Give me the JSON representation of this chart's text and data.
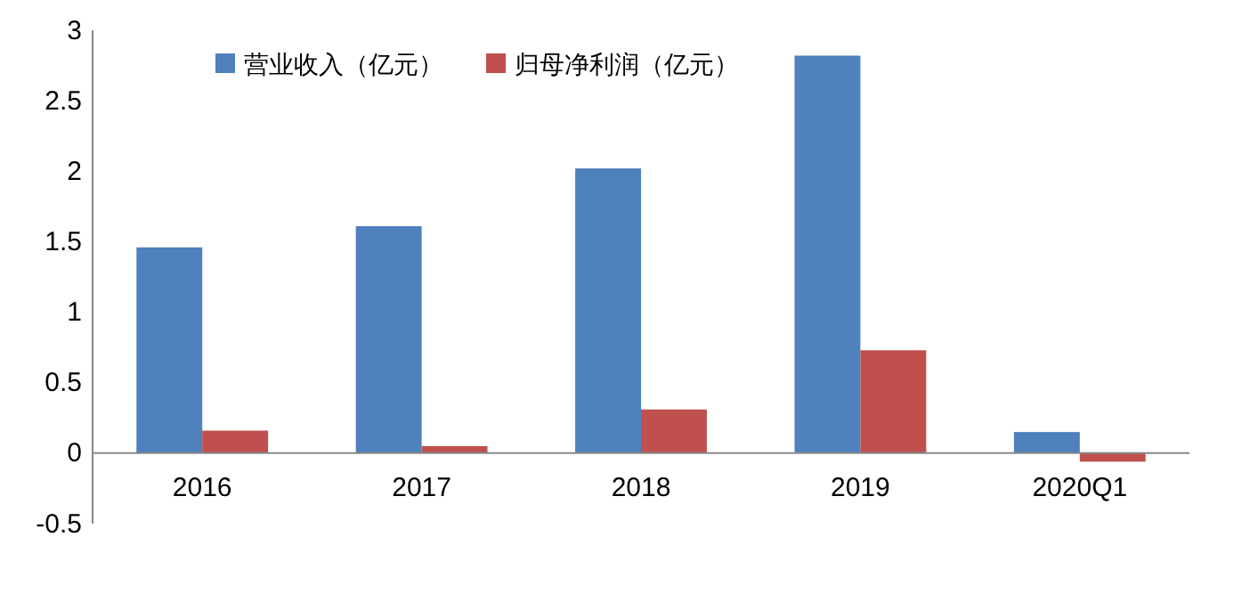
{
  "chart_data": {
    "type": "bar",
    "categories": [
      "2016",
      "2017",
      "2018",
      "2019",
      "2020Q1"
    ],
    "series": [
      {
        "name": "营业收入（亿元）",
        "color": "#4f81bd",
        "values": [
          1.46,
          1.61,
          2.02,
          2.82,
          0.15
        ]
      },
      {
        "name": "归母净利润（亿元）",
        "color": "#c0504d",
        "values": [
          0.16,
          0.05,
          0.31,
          0.73,
          -0.06
        ]
      }
    ],
    "ylim": [
      -0.5,
      3
    ],
    "yticks": [
      {
        "value": -0.5,
        "label": "-0.5"
      },
      0,
      0.5,
      1,
      1.5,
      2,
      2.5,
      3
    ],
    "grid": false,
    "legend": "top"
  }
}
